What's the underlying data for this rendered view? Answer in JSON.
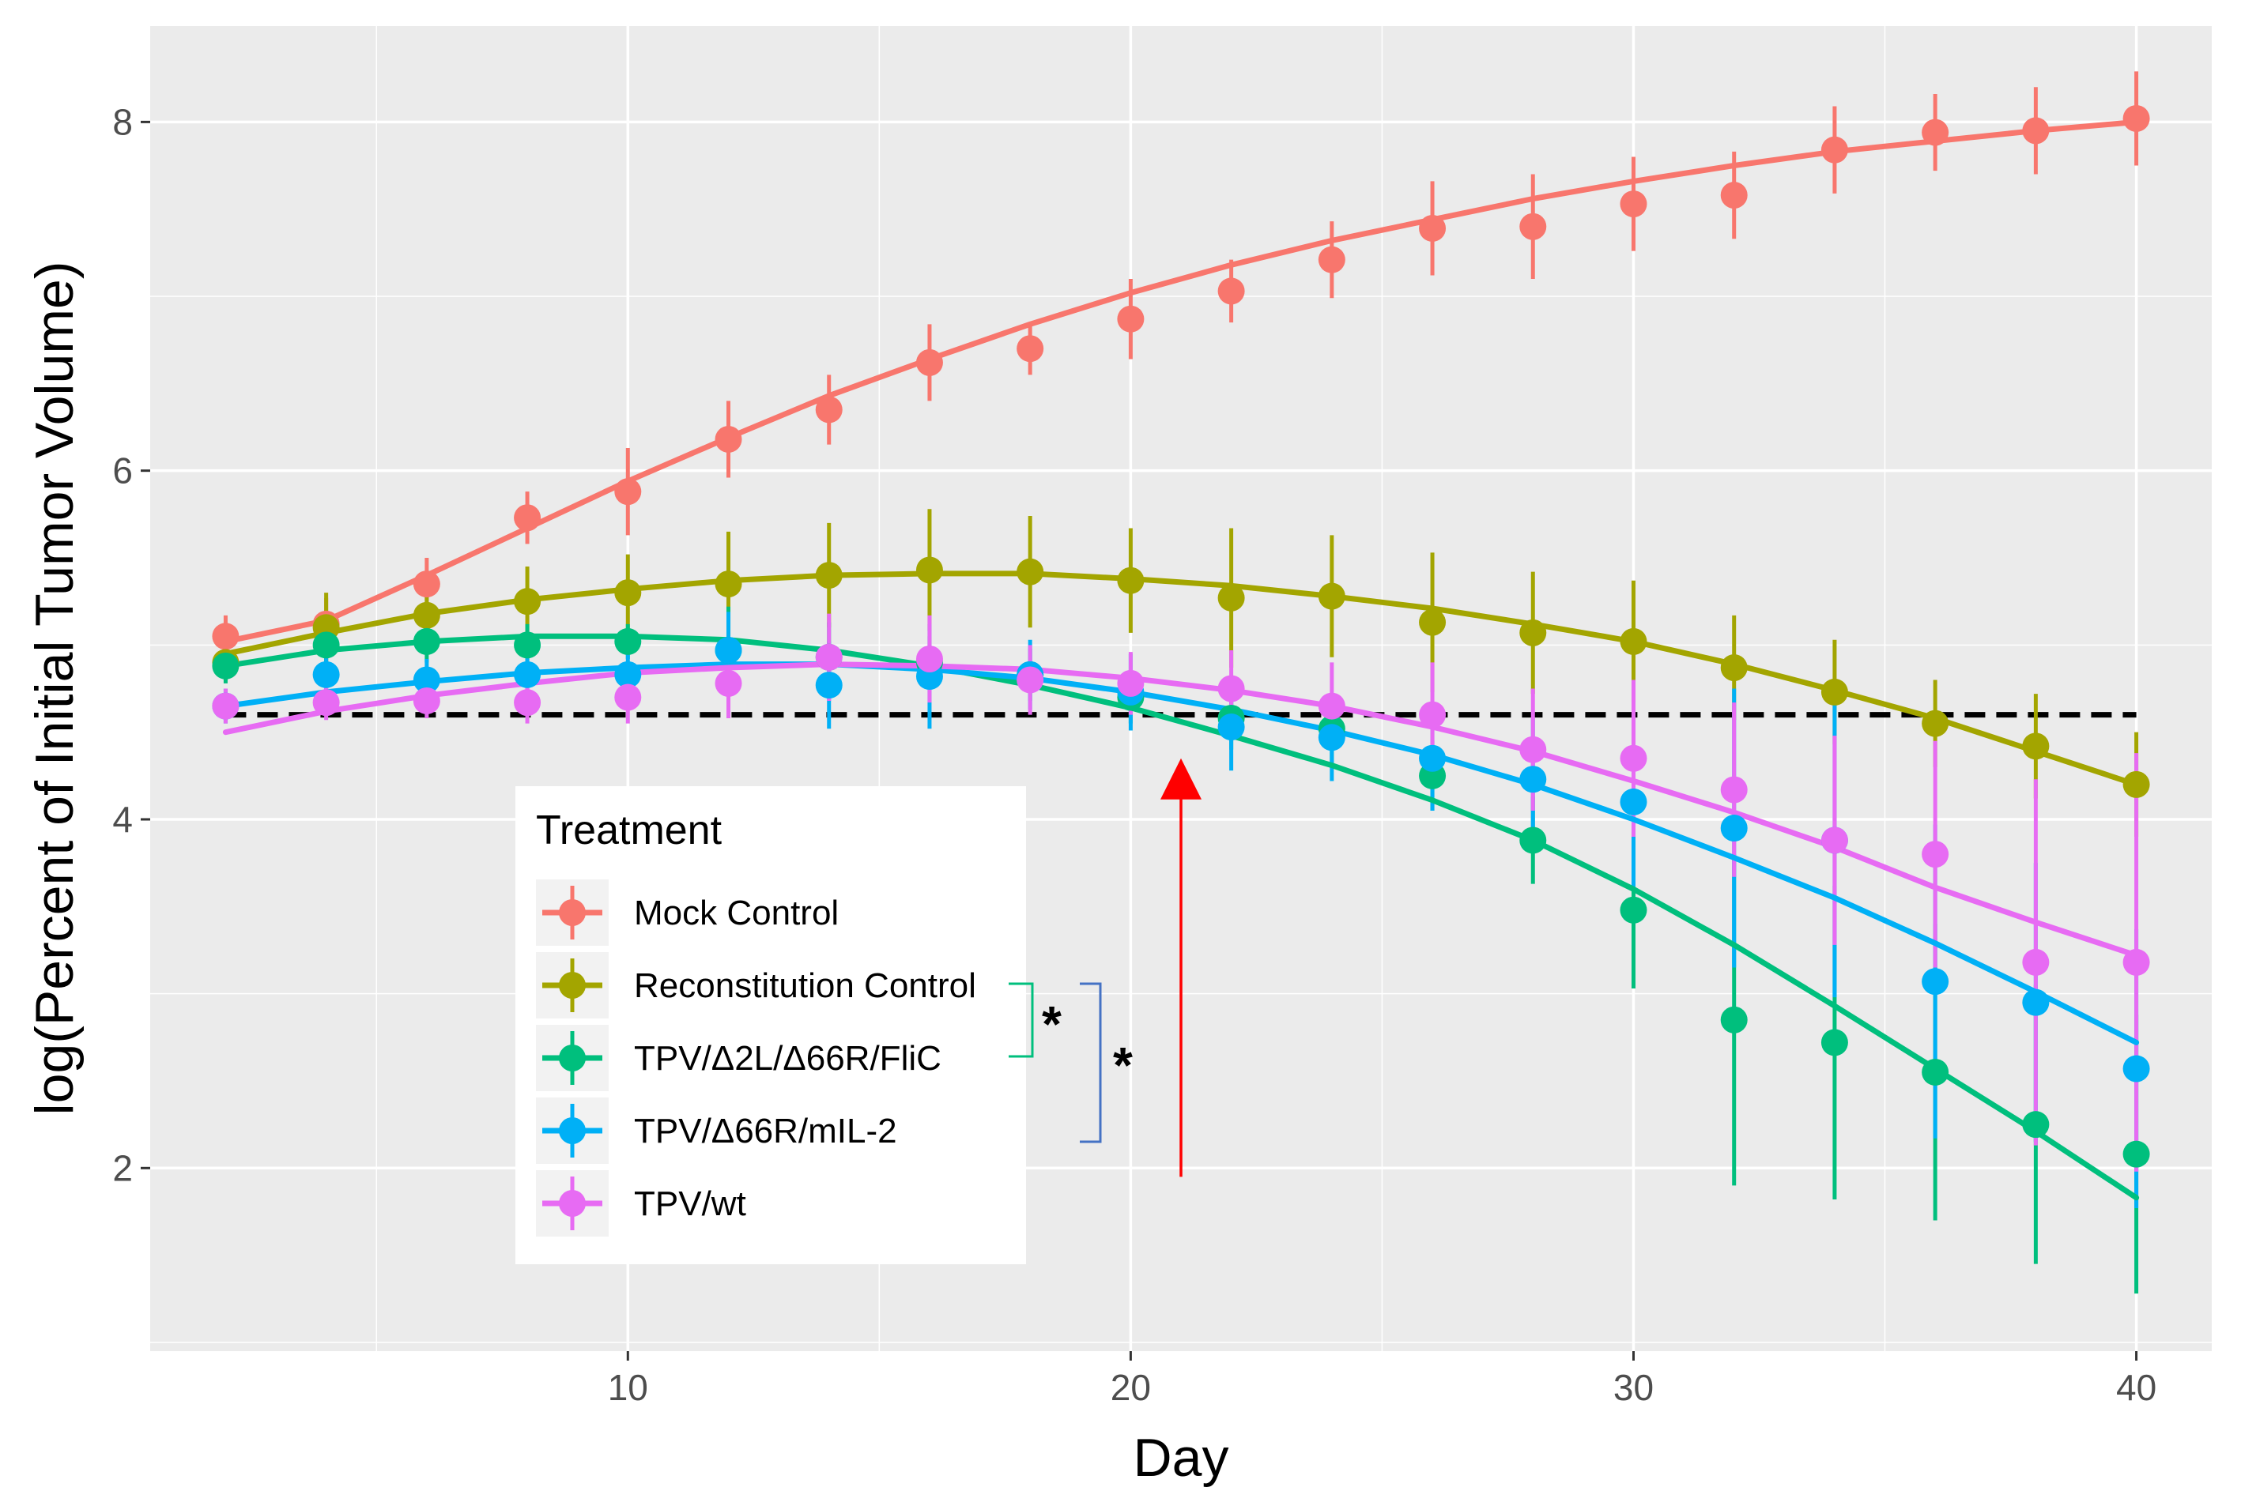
{
  "chart_data": {
    "type": "line",
    "xlabel": "Day",
    "ylabel": "log(Percent of Initial Tumor Volume)",
    "xlim": [
      0.5,
      41.5
    ],
    "ylim": [
      0.95,
      8.55
    ],
    "xticks": [
      10,
      20,
      30,
      40
    ],
    "yticks": [
      2,
      4,
      6,
      8
    ],
    "xtick_labels": [
      "10",
      "20",
      "30",
      "40"
    ],
    "ytick_labels": [
      "2",
      "4",
      "6",
      "8"
    ],
    "grid": true,
    "legend_title": "Treatment",
    "legend_position": "center-left",
    "x": [
      2,
      4,
      6,
      8,
      10,
      12,
      14,
      16,
      18,
      20,
      22,
      24,
      26,
      28,
      30,
      32,
      34,
      36,
      38,
      40
    ],
    "reference_line": {
      "y": 4.6,
      "style": "dashed",
      "color": "#000000",
      "x_from": 2,
      "x_to": 40
    },
    "arrow": {
      "x": 21,
      "y_from": 1.95,
      "y_to": 4.35,
      "color": "#ff0000"
    },
    "significance_marker": "*",
    "series": [
      {
        "name": "Mock Control",
        "color": "#F8766D",
        "values": [
          5.05,
          5.12,
          5.35,
          5.73,
          5.88,
          6.18,
          6.35,
          6.62,
          6.7,
          6.87,
          7.03,
          7.21,
          7.39,
          7.4,
          7.53,
          7.58,
          7.84,
          7.94,
          7.95,
          8.02
        ],
        "errors": [
          0.12,
          0.15,
          0.15,
          0.15,
          0.25,
          0.22,
          0.2,
          0.22,
          0.15,
          0.23,
          0.18,
          0.22,
          0.27,
          0.3,
          0.27,
          0.25,
          0.25,
          0.22,
          0.25,
          0.27
        ],
        "fit": [
          5.02,
          5.14,
          5.4,
          5.67,
          5.94,
          6.19,
          6.43,
          6.64,
          6.84,
          7.02,
          7.18,
          7.32,
          7.44,
          7.56,
          7.66,
          7.75,
          7.83,
          7.89,
          7.95,
          8.0
        ]
      },
      {
        "name": "Reconstitution Control",
        "color": "#A3A500",
        "values": [
          4.9,
          5.1,
          5.17,
          5.25,
          5.3,
          5.35,
          5.4,
          5.43,
          5.42,
          5.37,
          5.27,
          5.28,
          5.13,
          5.07,
          5.02,
          4.87,
          4.73,
          4.55,
          4.42,
          4.2
        ],
        "errors": [
          0.1,
          0.2,
          0.18,
          0.2,
          0.22,
          0.3,
          0.3,
          0.35,
          0.32,
          0.3,
          0.4,
          0.35,
          0.4,
          0.35,
          0.35,
          0.3,
          0.3,
          0.25,
          0.3,
          0.3
        ],
        "fit": [
          4.95,
          5.07,
          5.18,
          5.26,
          5.32,
          5.37,
          5.4,
          5.41,
          5.41,
          5.38,
          5.34,
          5.28,
          5.21,
          5.12,
          5.02,
          4.89,
          4.74,
          4.58,
          4.39,
          4.2
        ]
      },
      {
        "name": "TPV/Δ2L/Δ66R/FliC",
        "color": "#00BF7D",
        "values": [
          4.88,
          5.0,
          5.02,
          5.0,
          5.02,
          4.97,
          4.93,
          4.9,
          4.83,
          4.7,
          4.58,
          4.52,
          4.25,
          3.88,
          3.48,
          2.85,
          2.72,
          2.55,
          2.25,
          2.08
        ],
        "errors": [
          0.1,
          0.1,
          0.12,
          0.12,
          0.1,
          0.25,
          0.2,
          0.15,
          0.15,
          0.15,
          0.18,
          0.2,
          0.2,
          0.25,
          0.45,
          0.95,
          0.9,
          0.85,
          0.8,
          0.8
        ],
        "fit": [
          4.88,
          4.97,
          5.02,
          5.05,
          5.05,
          5.03,
          4.97,
          4.88,
          4.77,
          4.64,
          4.48,
          4.31,
          4.11,
          3.88,
          3.6,
          3.28,
          2.93,
          2.57,
          2.21,
          1.83
        ]
      },
      {
        "name": "TPV/Δ66R/mIL-2",
        "color": "#00B0F6",
        "values": [
          4.65,
          4.83,
          4.8,
          4.83,
          4.83,
          4.97,
          4.77,
          4.82,
          4.83,
          4.73,
          4.53,
          4.47,
          4.35,
          4.23,
          4.1,
          3.95,
          3.88,
          3.07,
          2.95,
          2.57
        ],
        "errors": [
          0.1,
          0.12,
          0.12,
          0.12,
          0.15,
          0.22,
          0.25,
          0.3,
          0.2,
          0.22,
          0.25,
          0.25,
          0.3,
          0.35,
          0.5,
          0.8,
          0.9,
          0.9,
          0.8,
          0.8
        ],
        "fit": [
          4.65,
          4.73,
          4.79,
          4.84,
          4.87,
          4.89,
          4.89,
          4.86,
          4.81,
          4.73,
          4.63,
          4.51,
          4.37,
          4.2,
          4.0,
          3.78,
          3.55,
          3.29,
          3.01,
          2.72
        ]
      },
      {
        "name": "TPV/wt",
        "color": "#E76BF3",
        "values": [
          4.65,
          4.67,
          4.68,
          4.67,
          4.7,
          4.78,
          4.93,
          4.92,
          4.8,
          4.78,
          4.75,
          4.65,
          4.6,
          4.4,
          4.35,
          4.17,
          3.88,
          3.8,
          3.18,
          3.18
        ],
        "errors": [
          0.1,
          0.1,
          0.1,
          0.12,
          0.15,
          0.2,
          0.25,
          0.25,
          0.2,
          0.18,
          0.22,
          0.25,
          0.3,
          0.35,
          0.45,
          0.5,
          0.6,
          0.65,
          1.05,
          1.2
        ],
        "fit": [
          4.5,
          4.62,
          4.71,
          4.78,
          4.84,
          4.87,
          4.89,
          4.88,
          4.86,
          4.81,
          4.74,
          4.65,
          4.53,
          4.39,
          4.22,
          4.04,
          3.84,
          3.61,
          3.41,
          3.22
        ]
      }
    ]
  }
}
